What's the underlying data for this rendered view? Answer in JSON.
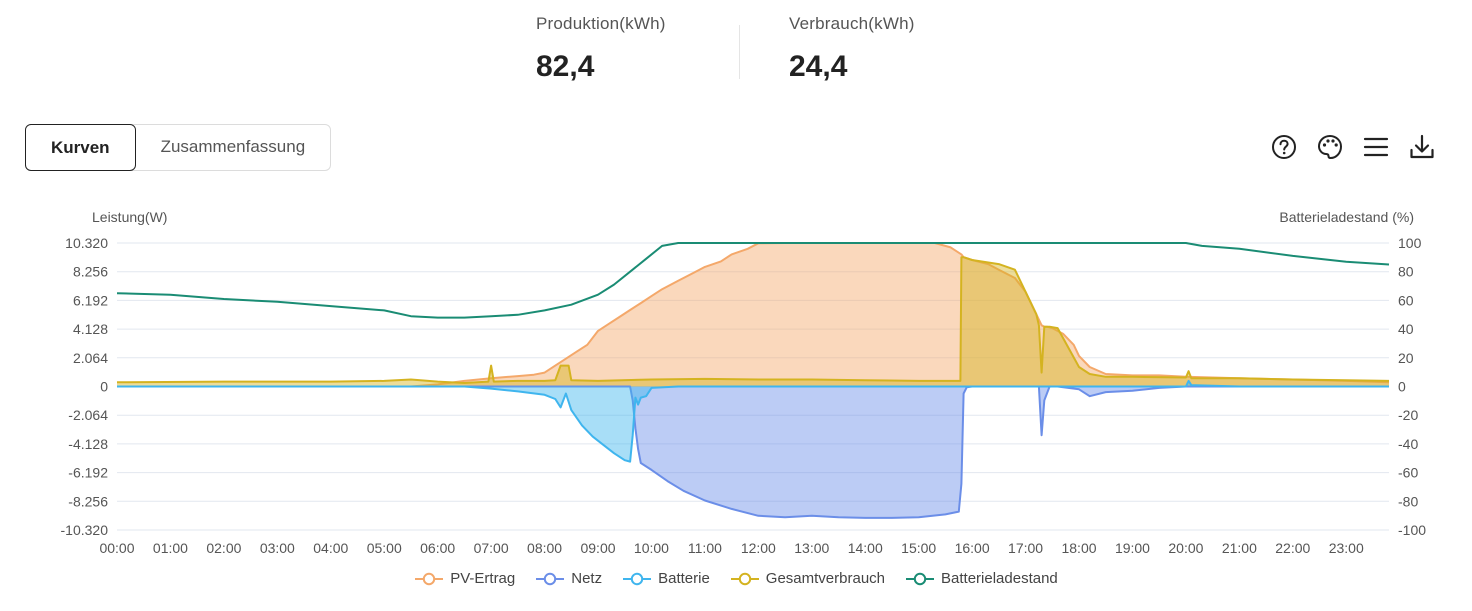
{
  "stats": {
    "production": {
      "label": "Produktion(kWh)",
      "value": "82,4"
    },
    "consumption": {
      "label": "Verbrauch(kWh)",
      "value": "24,4"
    }
  },
  "tabs": [
    {
      "label": "Kurven",
      "active": true
    },
    {
      "label": "Zusammenfassung",
      "active": false
    }
  ],
  "toolbar": {
    "icons": [
      "help-icon",
      "palette-icon",
      "menu-icon",
      "download-icon"
    ]
  },
  "colors": {
    "pv": "#f4a86a",
    "grid": "#6b8ee8",
    "battery": "#3fb5ee",
    "consumption": "#d4b320",
    "soc": "#1a8c74"
  },
  "chart_data": {
    "type": "area",
    "left_axis_title": "Leistung(W)",
    "right_axis_title": "Batterieladestand (%)",
    "y_ticks_left": [
      "10.320",
      "8.256",
      "6.192",
      "4.128",
      "2.064",
      "0",
      "-2.064",
      "-4.128",
      "-6.192",
      "-8.256",
      "-10.320"
    ],
    "y_ticks_right": [
      "100",
      "80",
      "60",
      "40",
      "20",
      "0",
      "-20",
      "-40",
      "-60",
      "-80",
      "-100"
    ],
    "ylim_left": [
      -10320,
      10320
    ],
    "ylim_right": [
      -100,
      100
    ],
    "x_ticks": [
      "00:00",
      "01:00",
      "02:00",
      "03:00",
      "04:00",
      "05:00",
      "06:00",
      "07:00",
      "08:00",
      "09:00",
      "10:00",
      "11:00",
      "12:00",
      "13:00",
      "14:00",
      "15:00",
      "16:00",
      "17:00",
      "18:00",
      "19:00",
      "20:00",
      "21:00",
      "22:00",
      "23:00"
    ],
    "xlim_hours": [
      0,
      23.8
    ],
    "grid": true,
    "legend_position": "bottom-center",
    "series": [
      {
        "name": "PV-Ertrag",
        "axis": "left",
        "fill": true,
        "color": "#f4a86a",
        "x": [
          0,
          5.5,
          6.0,
          6.5,
          7.0,
          7.5,
          7.8,
          8.0,
          8.2,
          8.4,
          8.6,
          8.8,
          9.0,
          9.2,
          9.4,
          9.6,
          9.8,
          10.0,
          10.2,
          10.5,
          10.8,
          11.0,
          11.3,
          11.5,
          11.8,
          12.0,
          12.5,
          13.0,
          13.5,
          14.0,
          14.5,
          15.0,
          15.3,
          15.6,
          15.8,
          15.84,
          16.0,
          16.3,
          16.5,
          16.8,
          17.0,
          17.2,
          17.3,
          17.35,
          17.4,
          17.5,
          17.7,
          17.9,
          18.0,
          18.2,
          18.5,
          19.0,
          19.5,
          20.0,
          21.0,
          22.0,
          23.0,
          23.8
        ],
        "y": [
          0,
          0,
          150,
          400,
          600,
          750,
          850,
          1000,
          1500,
          2000,
          2500,
          3000,
          4000,
          4500,
          5000,
          5500,
          6000,
          6500,
          7000,
          7600,
          8200,
          8600,
          9000,
          9500,
          9900,
          10300,
          10320,
          10320,
          10320,
          10320,
          10320,
          10320,
          10320,
          10000,
          9500,
          9300,
          9100,
          8800,
          8400,
          7800,
          6800,
          5200,
          4400,
          4300,
          4300,
          4200,
          3800,
          3000,
          2200,
          1400,
          900,
          800,
          800,
          700,
          600,
          500,
          400,
          300
        ]
      },
      {
        "name": "Netz",
        "axis": "left",
        "fill": true,
        "color": "#6b8ee8",
        "x": [
          0,
          9.6,
          9.65,
          9.7,
          9.75,
          9.8,
          10.0,
          10.3,
          10.6,
          11.0,
          11.5,
          12.0,
          12.5,
          13.0,
          13.5,
          14.0,
          14.5,
          15.0,
          15.5,
          15.75,
          15.8,
          15.84,
          15.9,
          16.0,
          16.5,
          17.0,
          17.25,
          17.3,
          17.35,
          17.45,
          17.6,
          18.0,
          18.2,
          18.5,
          19.0,
          19.5,
          20.0,
          21.0,
          22.0,
          23.8
        ],
        "y": [
          0,
          0,
          -1000,
          -3000,
          -4500,
          -5500,
          -6000,
          -6800,
          -7500,
          -8200,
          -8800,
          -9300,
          -9400,
          -9300,
          -9400,
          -9450,
          -9450,
          -9400,
          -9200,
          -9000,
          -7000,
          -500,
          -50,
          0,
          0,
          0,
          0,
          -3500,
          -1000,
          0,
          0,
          -200,
          -700,
          -400,
          -300,
          -100,
          0,
          0,
          0,
          0
        ]
      },
      {
        "name": "Batterie",
        "axis": "left",
        "fill": true,
        "color": "#3fb5ee",
        "x": [
          0,
          6.5,
          7.0,
          7.5,
          8.0,
          8.2,
          8.3,
          8.4,
          8.5,
          8.7,
          8.9,
          9.1,
          9.3,
          9.5,
          9.6,
          9.65,
          9.7,
          9.75,
          9.8,
          9.9,
          10.0,
          10.5,
          11.0,
          12.0,
          16.0,
          18.0,
          19.0,
          20.0,
          20.05,
          20.1,
          21.0,
          22.0,
          23.0,
          23.8
        ],
        "y": [
          0,
          0,
          -150,
          -350,
          -600,
          -900,
          -1500,
          -500,
          -1700,
          -2800,
          -3600,
          -4200,
          -4800,
          -5300,
          -5400,
          -3500,
          -800,
          -1300,
          -800,
          -700,
          -100,
          0,
          0,
          0,
          0,
          0,
          0,
          0,
          400,
          100,
          0,
          0,
          0,
          0
        ]
      },
      {
        "name": "Gesamtverbrauch",
        "axis": "left",
        "fill": true,
        "color": "#d4b320",
        "x": [
          0,
          2.0,
          4.0,
          5.0,
          5.5,
          6.0,
          6.5,
          6.95,
          7.0,
          7.05,
          7.5,
          8.0,
          8.2,
          8.3,
          8.45,
          8.5,
          9.0,
          10.0,
          11.0,
          12.0,
          13.0,
          14.0,
          15.0,
          15.78,
          15.8,
          15.84,
          16.0,
          16.5,
          16.8,
          17.0,
          17.2,
          17.25,
          17.3,
          17.35,
          17.45,
          17.6,
          18.0,
          18.2,
          18.5,
          19.0,
          20.0,
          20.05,
          20.1,
          21.0,
          22.0,
          23.0,
          23.8
        ],
        "y": [
          300,
          350,
          350,
          400,
          500,
          350,
          250,
          350,
          1500,
          350,
          400,
          400,
          450,
          1500,
          1500,
          450,
          400,
          500,
          550,
          500,
          500,
          450,
          400,
          400,
          9300,
          9300,
          9100,
          8800,
          8400,
          6800,
          5200,
          4400,
          1000,
          4300,
          4300,
          4200,
          1400,
          900,
          700,
          700,
          650,
          1100,
          600,
          600,
          500,
          450,
          400
        ]
      },
      {
        "name": "Batterieladestand",
        "axis": "right",
        "fill": false,
        "color": "#1a8c74",
        "x": [
          0,
          1.0,
          2.0,
          3.0,
          4.0,
          5.0,
          5.5,
          6.0,
          6.5,
          7.0,
          7.5,
          8.0,
          8.5,
          9.0,
          9.3,
          9.6,
          9.9,
          10.2,
          10.5,
          11,
          12,
          13,
          14,
          15,
          16,
          17,
          18,
          19,
          20,
          20.3,
          21,
          22,
          23,
          23.8
        ],
        "y": [
          65,
          64,
          61,
          59,
          56,
          53,
          49,
          48,
          48,
          49,
          50,
          53,
          57,
          64,
          71,
          80,
          89,
          98,
          100,
          100,
          100,
          100,
          100,
          100,
          100,
          100,
          100,
          100,
          100,
          98,
          96,
          91,
          87,
          85
        ]
      }
    ]
  }
}
